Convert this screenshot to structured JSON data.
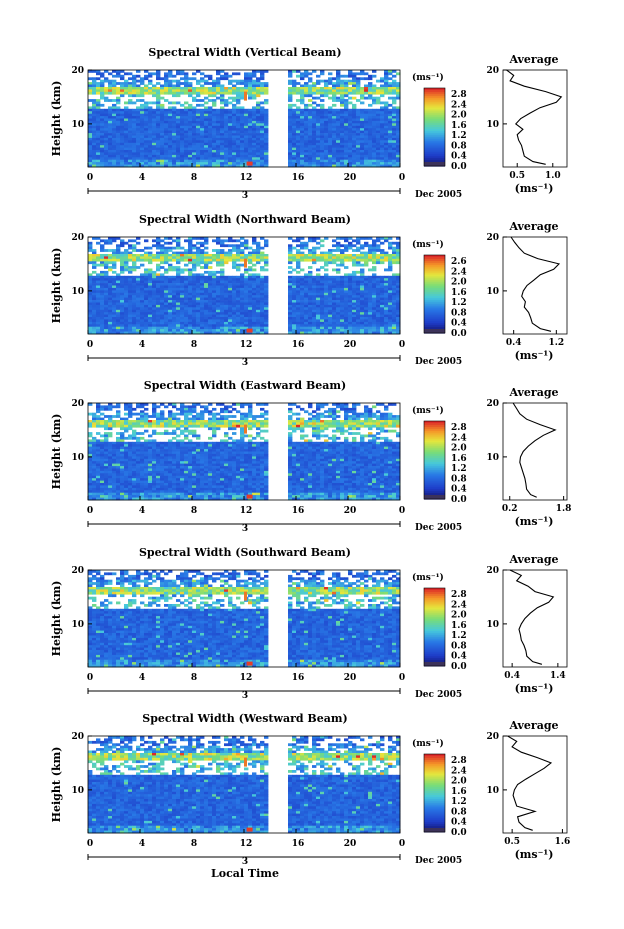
{
  "chart_data": [
    {
      "type": "heatmap",
      "title": "Spectral Width (Vertical Beam)",
      "ylabel": "Height (km)",
      "x_ticks": [
        "0",
        "4",
        "8",
        "12",
        "16",
        "20",
        "0"
      ],
      "y_ticks": [
        "20",
        "10"
      ],
      "date_marker": "3",
      "date_label": "Dec 2005",
      "colorbar": {
        "unit_label": "(ms⁻¹)",
        "ticks": [
          "2.8",
          "2.4",
          "2.0",
          "1.6",
          "1.2",
          "0.8",
          "0.4",
          "0.0"
        ]
      },
      "gap_hours": [
        13.7,
        15.3
      ],
      "profile": {
        "title": "Average",
        "xlabel": "(ms⁻¹)",
        "x_ticks": [
          "0.5",
          "1.0"
        ],
        "xlim": [
          0.3,
          1.2
        ],
        "y_ticks": [
          "20",
          "10"
        ],
        "ylim": [
          2,
          20
        ],
        "height_km": [
          2.5,
          3,
          4,
          5,
          6,
          7,
          8,
          9,
          10,
          11,
          12,
          13,
          14,
          15,
          16,
          17,
          18,
          19,
          20
        ],
        "width_ms": [
          0.9,
          0.72,
          0.6,
          0.58,
          0.56,
          0.52,
          0.5,
          0.58,
          0.48,
          0.55,
          0.68,
          0.82,
          1.05,
          1.12,
          0.9,
          0.6,
          0.4,
          0.45,
          0.35
        ]
      }
    },
    {
      "type": "heatmap",
      "title": "Spectral Width (Northward Beam)",
      "ylabel": "Height (km)",
      "x_ticks": [
        "0",
        "4",
        "8",
        "12",
        "16",
        "20",
        "0"
      ],
      "y_ticks": [
        "20",
        "10"
      ],
      "date_marker": "3",
      "date_label": "Dec 2005",
      "colorbar": {
        "unit_label": "(ms⁻¹)",
        "ticks": [
          "2.6",
          "2.4",
          "2.0",
          "1.6",
          "1.2",
          "0.8",
          "0.4",
          "0.0"
        ]
      },
      "gap_hours": [
        13.7,
        15.3
      ],
      "profile": {
        "title": "Average",
        "xlabel": "(ms⁻¹)",
        "x_ticks": [
          "0.4",
          "1.2"
        ],
        "xlim": [
          0.2,
          1.4
        ],
        "y_ticks": [
          "20",
          "10"
        ],
        "ylim": [
          2,
          20
        ],
        "height_km": [
          2.5,
          3,
          4,
          5,
          6,
          7,
          8,
          9,
          10,
          11,
          12,
          13,
          14,
          15,
          16,
          17,
          18,
          19,
          20
        ],
        "width_ms": [
          1.1,
          0.9,
          0.75,
          0.72,
          0.68,
          0.6,
          0.62,
          0.55,
          0.58,
          0.65,
          0.78,
          0.9,
          1.15,
          1.25,
          0.85,
          0.6,
          0.5,
          0.42,
          0.35
        ]
      }
    },
    {
      "type": "heatmap",
      "title": "Spectral Width (Eastward Beam)",
      "ylabel": "Height (km)",
      "x_ticks": [
        "0",
        "4",
        "8",
        "12",
        "16",
        "20",
        "0"
      ],
      "y_ticks": [
        "20",
        "10"
      ],
      "date_marker": "3",
      "date_label": "Dec 2005",
      "colorbar": {
        "unit_label": "(ms⁻¹)",
        "ticks": [
          "2.8",
          "2.4",
          "2.0",
          "1.6",
          "1.2",
          "0.8",
          "0.4",
          "0.0"
        ]
      },
      "gap_hours": [
        13.7,
        15.3
      ],
      "profile": {
        "title": "Average",
        "xlabel": "(ms⁻¹)",
        "x_ticks": [
          "0.2",
          "1.8"
        ],
        "xlim": [
          0.0,
          1.9
        ],
        "y_ticks": [
          "20",
          "10"
        ],
        "ylim": [
          2,
          20
        ],
        "height_km": [
          2.5,
          3,
          4,
          5,
          6,
          7,
          8,
          9,
          10,
          11,
          12,
          13,
          14,
          15,
          16,
          17,
          18,
          19,
          20
        ],
        "width_ms": [
          1.0,
          0.82,
          0.7,
          0.68,
          0.65,
          0.6,
          0.55,
          0.5,
          0.52,
          0.6,
          0.75,
          0.95,
          1.2,
          1.55,
          1.1,
          0.7,
          0.5,
          0.4,
          0.3
        ]
      }
    },
    {
      "type": "heatmap",
      "title": "Spectral Width (Southward Beam)",
      "ylabel": "Height (km)",
      "x_ticks": [
        "0",
        "4",
        "8",
        "12",
        "16",
        "20",
        "0"
      ],
      "y_ticks": [
        "20",
        "10"
      ],
      "date_marker": "3",
      "date_label": "Dec 2005",
      "colorbar": {
        "unit_label": "(ms⁻¹)",
        "ticks": [
          "2.8",
          "2.4",
          "2.0",
          "1.6",
          "1.2",
          "0.8",
          "0.4",
          "0.0"
        ]
      },
      "gap_hours": [
        13.7,
        15.3
      ],
      "profile": {
        "title": "Average",
        "xlabel": "(ms⁻¹)",
        "x_ticks": [
          "0.4",
          "1.4"
        ],
        "xlim": [
          0.2,
          1.6
        ],
        "y_ticks": [
          "20",
          "10"
        ],
        "ylim": [
          2,
          20
        ],
        "height_km": [
          2.5,
          3,
          4,
          5,
          6,
          7,
          8,
          9,
          10,
          11,
          12,
          13,
          14,
          15,
          16,
          17,
          18,
          19,
          20
        ],
        "width_ms": [
          1.05,
          0.85,
          0.72,
          0.7,
          0.66,
          0.6,
          0.58,
          0.55,
          0.6,
          0.68,
          0.8,
          0.95,
          1.2,
          1.3,
          0.9,
          0.75,
          0.5,
          0.6,
          0.35
        ]
      }
    },
    {
      "type": "heatmap",
      "title": "Spectral Width (Westward Beam)",
      "ylabel": "Height (km)",
      "xlabel": "Local Time",
      "x_ticks": [
        "0",
        "4",
        "8",
        "12",
        "16",
        "20",
        "0"
      ],
      "y_ticks": [
        "20",
        "10"
      ],
      "date_marker": "3",
      "date_label": "Dec 2005",
      "colorbar": {
        "unit_label": "(ms⁻¹)",
        "ticks": [
          "2.8",
          "2.4",
          "2.0",
          "1.6",
          "1.2",
          "0.8",
          "0.4",
          "0.0"
        ]
      },
      "gap_hours": [
        13.7,
        15.3
      ],
      "profile": {
        "title": "Average",
        "xlabel": "(ms⁻¹)",
        "x_ticks": [
          "0.5",
          "1.6"
        ],
        "xlim": [
          0.3,
          1.7
        ],
        "y_ticks": [
          "20",
          "10"
        ],
        "ylim": [
          2,
          20
        ],
        "height_km": [
          2.5,
          3,
          4,
          5,
          6,
          7,
          8,
          9,
          10,
          11,
          12,
          13,
          14,
          15,
          16,
          17,
          18,
          19,
          20
        ],
        "width_ms": [
          0.95,
          0.78,
          0.65,
          0.62,
          1.0,
          0.6,
          0.56,
          0.52,
          0.55,
          0.62,
          0.8,
          1.0,
          1.2,
          1.35,
          1.05,
          0.7,
          0.5,
          0.6,
          0.4
        ]
      }
    }
  ]
}
